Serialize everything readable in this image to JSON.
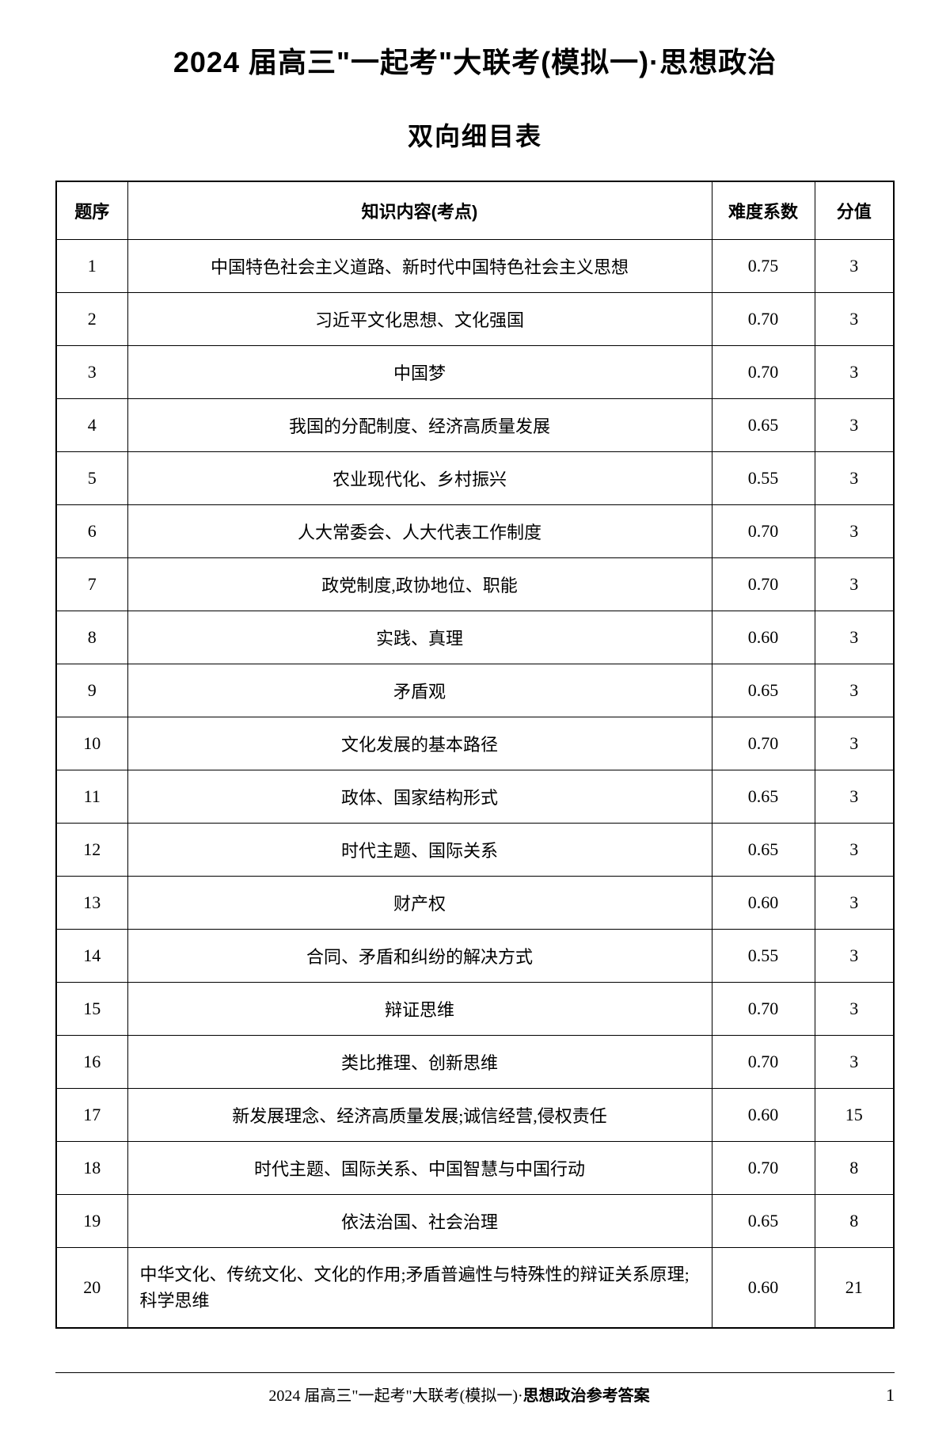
{
  "title": {
    "main": "2024 届高三\"一起考\"大联考(模拟一)·思想政治",
    "sub": "双向细目表"
  },
  "table": {
    "headers": {
      "seq": "题序",
      "content": "知识内容(考点)",
      "difficulty": "难度系数",
      "score": "分值"
    },
    "rows": [
      {
        "seq": "1",
        "content": "中国特色社会主义道路、新时代中国特色社会主义思想",
        "difficulty": "0.75",
        "score": "3",
        "align": "center"
      },
      {
        "seq": "2",
        "content": "习近平文化思想、文化强国",
        "difficulty": "0.70",
        "score": "3",
        "align": "center"
      },
      {
        "seq": "3",
        "content": "中国梦",
        "difficulty": "0.70",
        "score": "3",
        "align": "center"
      },
      {
        "seq": "4",
        "content": "我国的分配制度、经济高质量发展",
        "difficulty": "0.65",
        "score": "3",
        "align": "center"
      },
      {
        "seq": "5",
        "content": "农业现代化、乡村振兴",
        "difficulty": "0.55",
        "score": "3",
        "align": "center"
      },
      {
        "seq": "6",
        "content": "人大常委会、人大代表工作制度",
        "difficulty": "0.70",
        "score": "3",
        "align": "center"
      },
      {
        "seq": "7",
        "content": "政党制度,政协地位、职能",
        "difficulty": "0.70",
        "score": "3",
        "align": "center"
      },
      {
        "seq": "8",
        "content": "实践、真理",
        "difficulty": "0.60",
        "score": "3",
        "align": "center"
      },
      {
        "seq": "9",
        "content": "矛盾观",
        "difficulty": "0.65",
        "score": "3",
        "align": "center"
      },
      {
        "seq": "10",
        "content": "文化发展的基本路径",
        "difficulty": "0.70",
        "score": "3",
        "align": "center"
      },
      {
        "seq": "11",
        "content": "政体、国家结构形式",
        "difficulty": "0.65",
        "score": "3",
        "align": "center"
      },
      {
        "seq": "12",
        "content": "时代主题、国际关系",
        "difficulty": "0.65",
        "score": "3",
        "align": "center"
      },
      {
        "seq": "13",
        "content": "财产权",
        "difficulty": "0.60",
        "score": "3",
        "align": "center"
      },
      {
        "seq": "14",
        "content": "合同、矛盾和纠纷的解决方式",
        "difficulty": "0.55",
        "score": "3",
        "align": "center"
      },
      {
        "seq": "15",
        "content": "辩证思维",
        "difficulty": "0.70",
        "score": "3",
        "align": "center"
      },
      {
        "seq": "16",
        "content": "类比推理、创新思维",
        "difficulty": "0.70",
        "score": "3",
        "align": "center"
      },
      {
        "seq": "17",
        "content": "新发展理念、经济高质量发展;诚信经营,侵权责任",
        "difficulty": "0.60",
        "score": "15",
        "align": "center"
      },
      {
        "seq": "18",
        "content": "时代主题、国际关系、中国智慧与中国行动",
        "difficulty": "0.70",
        "score": "8",
        "align": "center"
      },
      {
        "seq": "19",
        "content": "依法治国、社会治理",
        "difficulty": "0.65",
        "score": "8",
        "align": "center"
      },
      {
        "seq": "20",
        "content": "中华文化、传统文化、文化的作用;矛盾普遍性与特殊性的辩证关系原理;科学思维",
        "difficulty": "0.60",
        "score": "21",
        "align": "left"
      }
    ]
  },
  "footer": {
    "text_prefix": "2024 届高三\"一起考\"大联考(模拟一)·",
    "text_bold": "思想政治参考答案",
    "page": "1"
  },
  "styling": {
    "background_color": "#ffffff",
    "text_color": "#000000",
    "border_color": "#000000",
    "title_fontsize": 36,
    "subtitle_fontsize": 32,
    "cell_fontsize": 22,
    "footer_fontsize": 20
  }
}
